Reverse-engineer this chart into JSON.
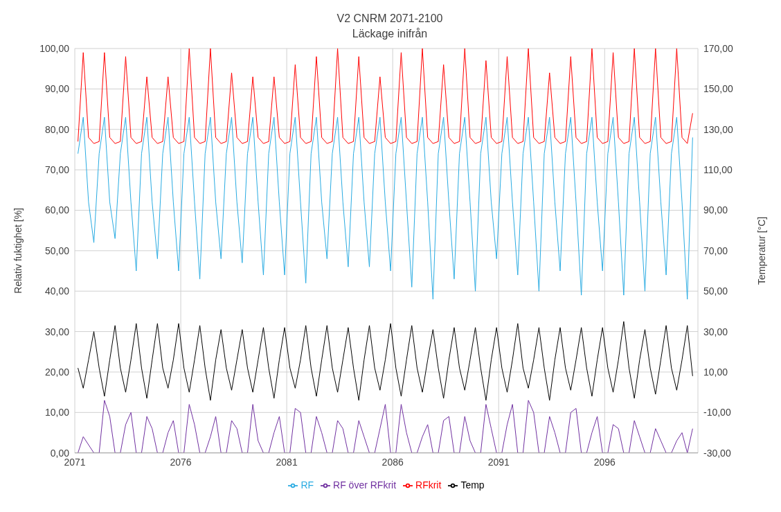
{
  "chart_data": {
    "type": "line",
    "title": "V2 CNRM 2071-2100",
    "subtitle": "Läckage inifrån",
    "ylabel": "Relativ fuktighet [%]",
    "y2label": "Temperatur [°C]",
    "x": [
      2071.15,
      2071.4,
      2071.65,
      2071.9,
      2072.15,
      2072.4,
      2072.65,
      2072.9,
      2073.15,
      2073.4,
      2073.65,
      2073.9,
      2074.15,
      2074.4,
      2074.65,
      2074.9,
      2075.15,
      2075.4,
      2075.65,
      2075.9,
      2076.15,
      2076.4,
      2076.65,
      2076.9,
      2077.15,
      2077.4,
      2077.65,
      2077.9,
      2078.15,
      2078.4,
      2078.65,
      2078.9,
      2079.15,
      2079.4,
      2079.65,
      2079.9,
      2080.15,
      2080.4,
      2080.65,
      2080.9,
      2081.15,
      2081.4,
      2081.65,
      2081.9,
      2082.15,
      2082.4,
      2082.65,
      2082.9,
      2083.15,
      2083.4,
      2083.65,
      2083.9,
      2084.15,
      2084.4,
      2084.65,
      2084.9,
      2085.15,
      2085.4,
      2085.65,
      2085.9,
      2086.15,
      2086.4,
      2086.65,
      2086.9,
      2087.15,
      2087.4,
      2087.65,
      2087.9,
      2088.15,
      2088.4,
      2088.65,
      2088.9,
      2089.15,
      2089.4,
      2089.65,
      2089.9,
      2090.15,
      2090.4,
      2090.65,
      2090.9,
      2091.15,
      2091.4,
      2091.65,
      2091.9,
      2092.15,
      2092.4,
      2092.65,
      2092.9,
      2093.15,
      2093.4,
      2093.65,
      2093.9,
      2094.15,
      2094.4,
      2094.65,
      2094.9,
      2095.15,
      2095.4,
      2095.65,
      2095.9,
      2096.15,
      2096.4,
      2096.65,
      2096.9,
      2097.15,
      2097.4,
      2097.65,
      2097.9,
      2098.15,
      2098.4,
      2098.65,
      2098.9,
      2099.15,
      2099.4,
      2099.65,
      2099.9,
      2100.15
    ],
    "series": [
      {
        "name": "RF",
        "color": "#29abe2",
        "values": [
          74,
          83,
          62,
          52,
          74,
          83,
          62,
          53,
          74,
          83,
          62,
          45,
          74,
          83,
          62,
          48,
          74,
          83,
          62,
          45,
          74,
          83,
          62,
          43,
          74,
          83,
          62,
          48,
          74,
          83,
          62,
          47,
          74,
          83,
          62,
          44,
          74,
          83,
          62,
          44,
          74,
          83,
          62,
          42,
          74,
          83,
          62,
          48,
          74,
          83,
          62,
          46,
          74,
          83,
          62,
          46,
          74,
          83,
          62,
          45,
          74,
          83,
          62,
          41,
          74,
          83,
          62,
          38,
          74,
          83,
          62,
          43,
          74,
          83,
          62,
          40,
          74,
          83,
          62,
          48,
          74,
          83,
          62,
          44,
          74,
          83,
          62,
          40,
          74,
          83,
          62,
          45,
          74,
          83,
          62,
          39,
          74,
          83,
          62,
          45,
          74,
          83,
          62,
          39,
          74,
          83,
          62,
          40,
          74,
          83,
          62,
          44,
          74,
          83,
          62,
          38,
          78
        ]
      },
      {
        "name": "RFkrit",
        "color": "#ff0000",
        "values": [
          77,
          99,
          78,
          76.5,
          77,
          99,
          78,
          76.5,
          77,
          98,
          78,
          76.5,
          77,
          93,
          78,
          76.5,
          77,
          93,
          78,
          76.5,
          77,
          100,
          78,
          76.5,
          77,
          100,
          78,
          76.5,
          77,
          94,
          78,
          76.5,
          77,
          93,
          78,
          76.5,
          77,
          93,
          78,
          76.5,
          77,
          96,
          78,
          76.5,
          77,
          98,
          78,
          76.5,
          77,
          100,
          78,
          76.5,
          77,
          98,
          78,
          76.5,
          77,
          93,
          78,
          76.5,
          77,
          99,
          78,
          76.5,
          77,
          100,
          78,
          76.5,
          77,
          96,
          78,
          76.5,
          77,
          100,
          78,
          76.5,
          77,
          97,
          78,
          76.5,
          77,
          98,
          78,
          76.5,
          77,
          100,
          78,
          76.5,
          77,
          94,
          78,
          76.5,
          77,
          98,
          78,
          76.5,
          77,
          100,
          78,
          76.5,
          77,
          99,
          78,
          76.5,
          77,
          100,
          78,
          76.5,
          77,
          100,
          78,
          76.5,
          77,
          100,
          78,
          76.5,
          84
        ]
      },
      {
        "name": "RF över RFkrit",
        "color": "#7030a0",
        "values": [
          0,
          4,
          2,
          0,
          0,
          13,
          9,
          0,
          0,
          7,
          10,
          0,
          0,
          9,
          6,
          0,
          0,
          5,
          8,
          0,
          0,
          12,
          7,
          0,
          0,
          4,
          9,
          0,
          0,
          8,
          6,
          0,
          0,
          12,
          3,
          0,
          0,
          5,
          9,
          0,
          0,
          11,
          10,
          0,
          0,
          9,
          5,
          0,
          0,
          8,
          6,
          0,
          0,
          8,
          4,
          0,
          0,
          6,
          12,
          0,
          0,
          12,
          5,
          0,
          0,
          4,
          7,
          0,
          0,
          8,
          9,
          0,
          0,
          9,
          3,
          0,
          0,
          12,
          6,
          0,
          0,
          7,
          12,
          0,
          0,
          13,
          10,
          0,
          0,
          9,
          5,
          0,
          0,
          10,
          11,
          0,
          0,
          5,
          9,
          0,
          0,
          7,
          6,
          0,
          0,
          8,
          4,
          0,
          0,
          6,
          3,
          0,
          0,
          3,
          5,
          0,
          6
        ]
      },
      {
        "name": "Temp",
        "color": "#000000",
        "axis": "y2",
        "values": [
          12,
          2,
          16,
          30,
          12,
          -2,
          16,
          33,
          12,
          0,
          16,
          34,
          12,
          -3,
          16,
          34,
          12,
          2,
          16,
          34,
          12,
          0,
          16,
          33,
          12,
          -4,
          16,
          31,
          12,
          1,
          16,
          31,
          12,
          0,
          16,
          32,
          12,
          -3,
          16,
          32,
          12,
          2,
          16,
          33,
          12,
          -2,
          16,
          33,
          12,
          0,
          16,
          32,
          12,
          -4,
          16,
          33,
          12,
          1,
          16,
          34,
          12,
          -2,
          16,
          33,
          12,
          0,
          16,
          31,
          12,
          -3,
          16,
          32,
          12,
          1,
          16,
          32,
          12,
          -4,
          16,
          32,
          12,
          0,
          16,
          34,
          12,
          2,
          16,
          32,
          12,
          -4,
          16,
          32,
          12,
          1,
          16,
          32,
          12,
          -2,
          16,
          32,
          12,
          0,
          16,
          35,
          12,
          -3,
          16,
          31,
          12,
          -1,
          16,
          33,
          12,
          1,
          16,
          33,
          8
        ]
      }
    ],
    "xlim": [
      2071,
      2100.4
    ],
    "xticks": [
      2071,
      2076,
      2081,
      2086,
      2091,
      2096
    ],
    "ylim": [
      0,
      100
    ],
    "yticks": [
      {
        "value": 0,
        "label": "0,00"
      },
      {
        "value": 10,
        "label": "10,00"
      },
      {
        "value": 20,
        "label": "20,00"
      },
      {
        "value": 30,
        "label": "30,00"
      },
      {
        "value": 40,
        "label": "40,00"
      },
      {
        "value": 50,
        "label": "50,00"
      },
      {
        "value": 60,
        "label": "60,00"
      },
      {
        "value": 70,
        "label": "70,00"
      },
      {
        "value": 80,
        "label": "80,00"
      },
      {
        "value": 90,
        "label": "90,00"
      },
      {
        "value": 100,
        "label": "100,00"
      }
    ],
    "y2lim": [
      -30,
      170
    ],
    "y2ticks": [
      {
        "value": -30,
        "label": "-30,00"
      },
      {
        "value": -10,
        "label": "-10,00"
      },
      {
        "value": 10,
        "label": "10,00"
      },
      {
        "value": 30,
        "label": "30,00"
      },
      {
        "value": 50,
        "label": "50,00"
      },
      {
        "value": 70,
        "label": "70,00"
      },
      {
        "value": 90,
        "label": "90,00"
      },
      {
        "value": 110,
        "label": "110,00"
      },
      {
        "value": 130,
        "label": "130,00"
      },
      {
        "value": 150,
        "label": "150,00"
      },
      {
        "value": 170,
        "label": "170,00"
      }
    ],
    "grid": true,
    "legend": "bottom",
    "line_style": "solid"
  }
}
